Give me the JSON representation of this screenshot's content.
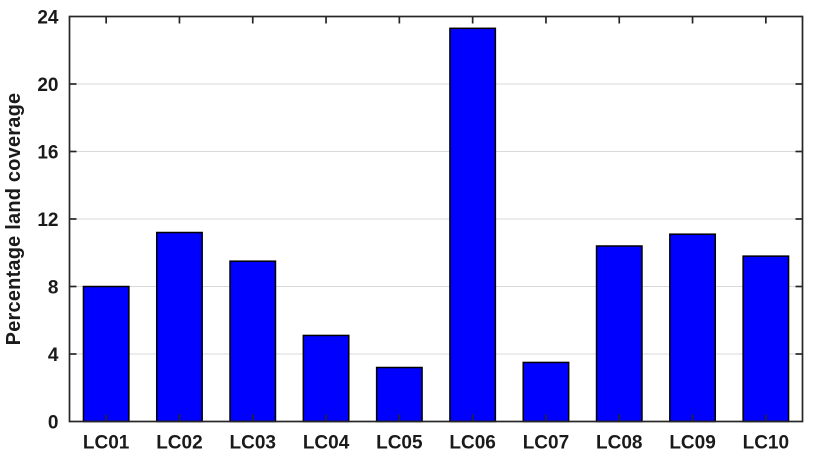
{
  "chart_data": {
    "type": "bar",
    "title": "",
    "categories": [
      "LC01",
      "LC02",
      "LC03",
      "LC04",
      "LC05",
      "LC06",
      "LC07",
      "LC08",
      "LC09",
      "LC10"
    ],
    "values": [
      8.0,
      11.2,
      9.5,
      5.1,
      3.2,
      23.3,
      3.5,
      10.4,
      11.1,
      9.8
    ],
    "xlabel": "",
    "ylabel": "Percentage land coverage",
    "ylim": [
      0,
      24
    ],
    "yticks": [
      0,
      4,
      8,
      12,
      16,
      20,
      24
    ],
    "grid": "horizontal",
    "legend": "none",
    "colors": {
      "bar_fill": "#0000ff",
      "bar_edge": "#000000",
      "axis": "#262626",
      "grid_line": "#d9d9d9",
      "tick_label": "#1a1a1a",
      "background": "#ffffff"
    }
  }
}
